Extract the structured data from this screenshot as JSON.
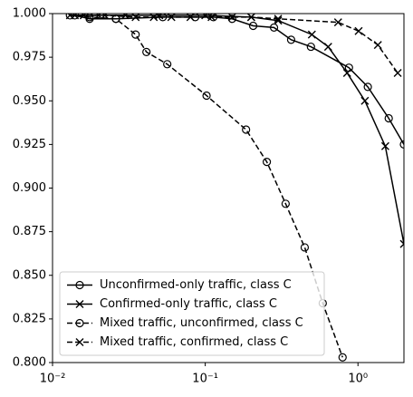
{
  "chart_data": {
    "type": "line",
    "xscale": "log",
    "xlim": [
      0.01,
      2
    ],
    "ylim": [
      0.8,
      1.0
    ],
    "xticks": [
      {
        "value": 0.01,
        "label": "10⁻²"
      },
      {
        "value": 0.1,
        "label": "10⁻¹"
      },
      {
        "value": 1,
        "label": "10⁰"
      }
    ],
    "yticks": [
      {
        "value": 0.8,
        "label": "0.800"
      },
      {
        "value": 0.825,
        "label": "0.825"
      },
      {
        "value": 0.85,
        "label": "0.850"
      },
      {
        "value": 0.875,
        "label": "0.875"
      },
      {
        "value": 0.9,
        "label": "0.900"
      },
      {
        "value": 0.925,
        "label": "0.925"
      },
      {
        "value": 0.95,
        "label": "0.950"
      },
      {
        "value": 0.975,
        "label": "0.975"
      },
      {
        "value": 1.0,
        "label": "1.000"
      }
    ],
    "legend": "lower left",
    "series": [
      {
        "name": "Unconfirmed-only traffic, class C",
        "color": "#000000",
        "marker": "o",
        "linestyle": "solid",
        "x": [
          0.014,
          0.0175,
          0.026,
          0.0527,
          0.086,
          0.113,
          0.15,
          0.206,
          0.282,
          0.365,
          0.492,
          0.873,
          1.16,
          1.59,
          2
        ],
        "values": [
          0.999,
          0.997,
          0.997,
          0.998,
          0.998,
          0.998,
          0.997,
          0.993,
          0.992,
          0.985,
          0.981,
          0.969,
          0.958,
          0.94,
          0.925
        ]
      },
      {
        "name": "Confirmed-only traffic, class C",
        "color": "#000000",
        "marker": "x",
        "linestyle": "solid",
        "x": [
          0.014,
          0.02,
          0.03,
          0.05,
          0.1,
          0.2,
          0.3,
          0.499,
          0.638,
          0.849,
          1.11,
          1.51,
          2
        ],
        "values": [
          0.999,
          0.999,
          0.999,
          0.999,
          0.999,
          0.998,
          0.996,
          0.988,
          0.981,
          0.966,
          0.95,
          0.924,
          0.868
        ]
      },
      {
        "name": "Mixed traffic, unconfirmed, class C",
        "color": "#000000",
        "marker": "o",
        "linestyle": "dashed",
        "x": [
          0.013,
          0.0175,
          0.026,
          0.035,
          0.0412,
          0.0564,
          0.102,
          0.185,
          0.253,
          0.336,
          0.448,
          0.588,
          0.793
        ],
        "values": [
          0.999,
          0.998,
          0.997,
          0.988,
          0.978,
          0.971,
          0.953,
          0.9335,
          0.915,
          0.891,
          0.866,
          0.834,
          0.803
        ]
      },
      {
        "name": "Mixed traffic, confirmed, class C",
        "color": "#000000",
        "marker": "x",
        "linestyle": "dashed",
        "x": [
          0.013,
          0.016,
          0.022,
          0.035,
          0.046,
          0.06,
          0.08,
          0.11,
          0.15,
          0.2,
          0.3,
          0.741,
          1.01,
          1.35,
          1.82
        ],
        "values": [
          0.999,
          0.999,
          0.999,
          0.998,
          0.998,
          0.998,
          0.998,
          0.998,
          0.998,
          0.998,
          0.997,
          0.995,
          0.99,
          0.982,
          0.966
        ]
      }
    ]
  }
}
